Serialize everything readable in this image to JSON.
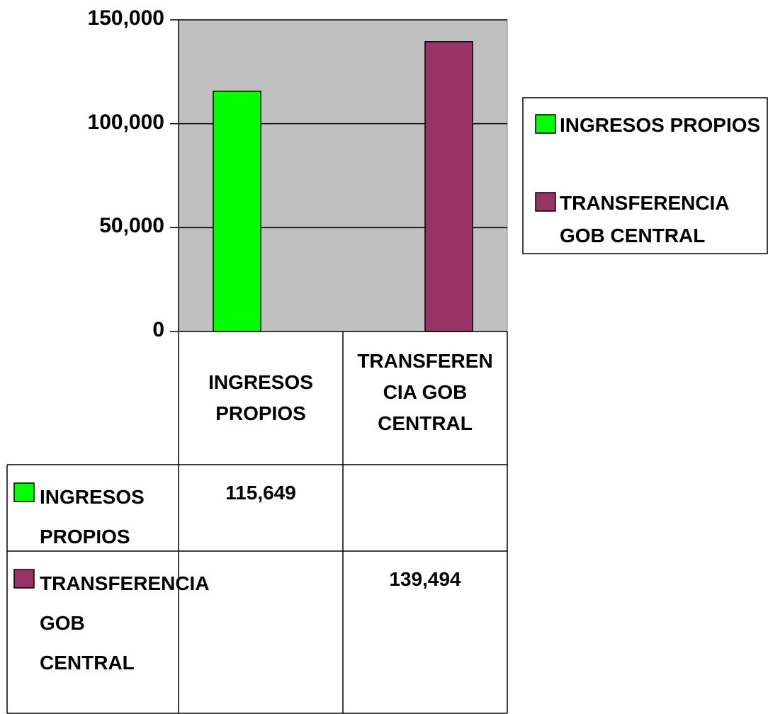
{
  "chart_data": {
    "type": "bar",
    "categories": [
      "INGRESOS PROPIOS",
      "TRANSFERENCIA GOB CENTRAL"
    ],
    "series": [
      {
        "name": "INGRESOS PROPIOS",
        "color": "#00ff00",
        "values": [
          115649,
          null
        ],
        "value_labels": [
          "115,649",
          null
        ]
      },
      {
        "name": "TRANSFERENCIA GOB CENTRAL",
        "color": "#993366",
        "values": [
          null,
          139494
        ],
        "value_labels": [
          null,
          "139,494"
        ]
      }
    ],
    "ylim": [
      0,
      150000
    ],
    "yticks": [
      0,
      {
        "value": 50000,
        "label": "50,000"
      },
      {
        "value": 100000,
        "label": "100,000"
      },
      {
        "value": 150000,
        "label": "150,000"
      }
    ],
    "grid": true,
    "plot_background": "#c0c0c0",
    "legend": "right",
    "data_table": true
  }
}
